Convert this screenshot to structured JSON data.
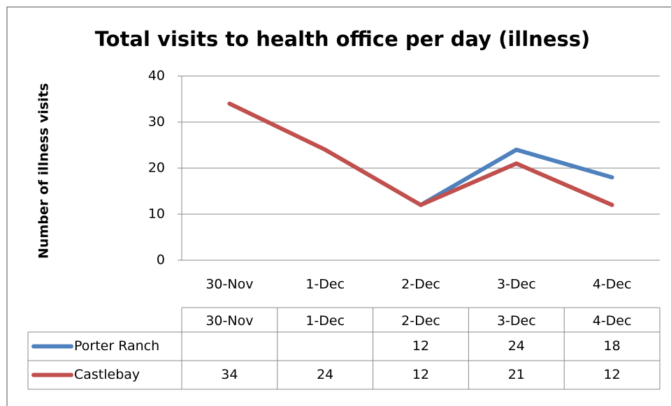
{
  "chart_data": {
    "type": "line",
    "title": "Total visits to health office per day (illness)",
    "y_label": "Number of illness visits",
    "categories": [
      "30-Nov",
      "1-Dec",
      "2-Dec",
      "3-Dec",
      "4-Dec"
    ],
    "series": [
      {
        "name": "Porter Ranch",
        "color": "#4f81bd",
        "values": [
          null,
          null,
          12,
          24,
          18
        ]
      },
      {
        "name": "Castlebay",
        "color": "#c0504d",
        "values": [
          34,
          24,
          12,
          21,
          12
        ]
      }
    ],
    "ylim": [
      0,
      40
    ],
    "yticks": [
      0,
      10,
      20,
      30,
      40
    ],
    "grid": true
  }
}
